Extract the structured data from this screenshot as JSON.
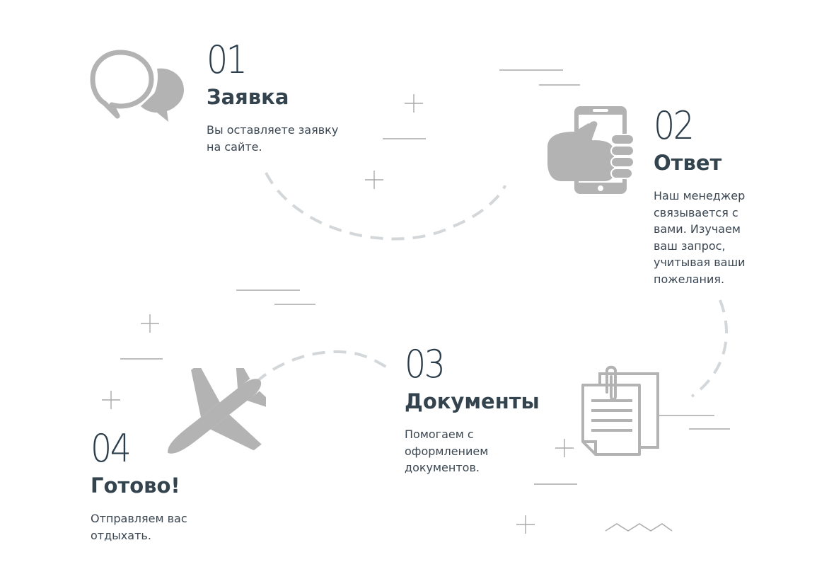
{
  "steps": [
    {
      "number": "01",
      "title": "Заявка",
      "desc_lines": [
        "Вы оставляете заявку",
        "на сайте."
      ],
      "icon": "chat-bubbles-icon"
    },
    {
      "number": "02",
      "title": "Ответ",
      "desc_lines": [
        "Наш менеджер",
        "связывается с",
        "вами. Изучаем",
        "ваш запрос,",
        "учитывая ваши",
        "пожелания."
      ],
      "icon": "phone-in-hand-icon"
    },
    {
      "number": "03",
      "title": "Документы",
      "desc_lines": [
        "Помогаем с",
        "оформлением",
        "документов."
      ],
      "icon": "documents-clip-icon"
    },
    {
      "number": "04",
      "title": "Готово!",
      "desc_lines": [
        "Отправляем вас",
        "отдыхать."
      ],
      "icon": "airplane-icon"
    }
  ],
  "colors": {
    "icon_gray": "#b3b3b3",
    "dash_gray": "#d3d7d9",
    "heading": "#2c3e4c",
    "text": "#3a4652",
    "deco_line": "#a9a9a9"
  }
}
